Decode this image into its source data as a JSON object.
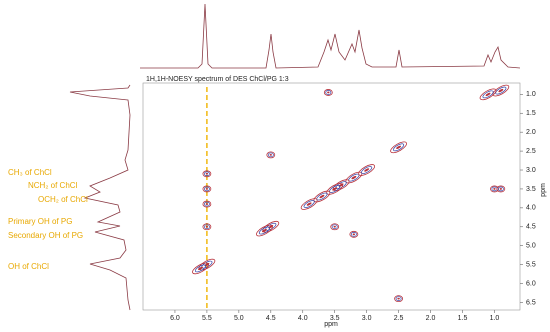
{
  "chart_data": {
    "type": "scatter",
    "title": "1H,1H-NOESY spectrum of DES ChCl/PG 1:3",
    "x_label": "ppm",
    "y_label": "ppm",
    "x": [
      0.9,
      1.1,
      2.5,
      3.2,
      3.4,
      3.5,
      3.7,
      3.9,
      4.5,
      4.6,
      5.5,
      5.6,
      3.6,
      1.0,
      0.9,
      4.5,
      5.5,
      5.5,
      5.5,
      5.5,
      3.5,
      3.2,
      3.0,
      2.5
    ],
    "values": [
      0.9,
      1.0,
      2.4,
      3.2,
      3.4,
      3.5,
      3.7,
      3.9,
      4.5,
      4.6,
      5.5,
      5.6,
      0.95,
      3.5,
      3.5,
      2.6,
      3.1,
      3.5,
      3.9,
      4.5,
      4.5,
      4.7,
      3.0,
      6.4
    ],
    "color": "#b8323c",
    "inner_color": "#3344aa",
    "xlim": [
      6.5,
      0.6
    ],
    "ylim": [
      0.7,
      6.7
    ],
    "xticks": [
      {
        "value": 6,
        "label": "6.0"
      },
      5.5,
      {
        "value": 5,
        "label": "5.0"
      },
      4.5,
      {
        "value": 4,
        "label": "4.0"
      },
      3.5,
      {
        "value": 3,
        "label": "3.0"
      },
      2.5,
      {
        "value": 2,
        "label": "2.0"
      },
      1.5,
      {
        "value": 1,
        "label": "1.0"
      }
    ],
    "yticks": [
      {
        "value": 1,
        "label": "1.0"
      },
      1.5,
      {
        "value": 2,
        "label": "2.0"
      },
      2.5,
      {
        "value": 3,
        "label": "3.0"
      },
      3.5,
      {
        "value": 4,
        "label": "4.0"
      },
      4.5,
      {
        "value": 5,
        "label": "5.0"
      },
      5.5,
      {
        "value": 6,
        "label": "6.0"
      },
      6.5
    ],
    "guide_line": {
      "x": 5.5,
      "color": "#f0b400"
    },
    "annotations": [
      "CH₃ of ChCl",
      "NCH₂ of ChCl",
      "OCH₂ of ChCl",
      "Primary OH of PG",
      "Secondary OH of PG",
      "OH of ChCl"
    ],
    "annotation_color": "#e8a800"
  }
}
